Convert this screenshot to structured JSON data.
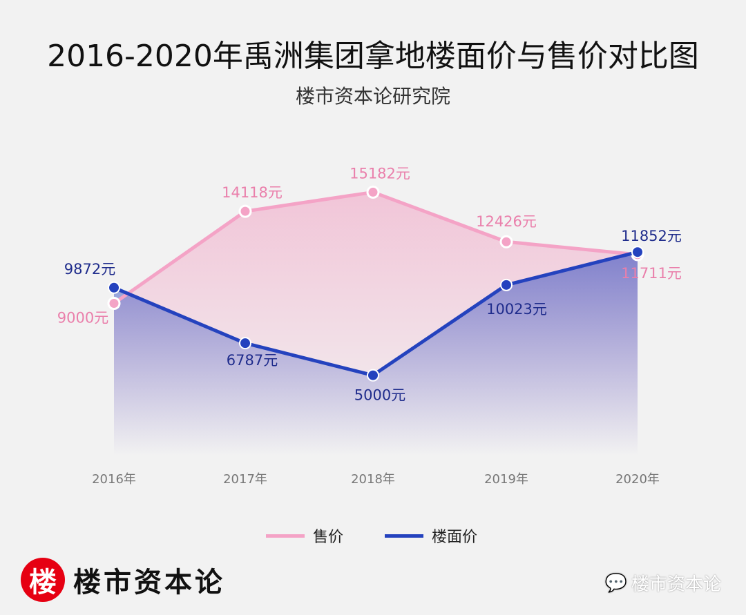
{
  "chart_data": {
    "type": "line",
    "title": "2016-2020年禹洲集团拿地楼面价与售价对比图",
    "subtitle": "楼市资本论研究院",
    "categories": [
      "2016年",
      "2017年",
      "2018年",
      "2019年",
      "2020年"
    ],
    "series": [
      {
        "name": "售价",
        "color": "#f4a3c6",
        "values": [
          9000,
          14118,
          15182,
          12426,
          11711
        ],
        "labels": [
          "9000元",
          "14118元",
          "15182元",
          "12426元",
          "11711元"
        ]
      },
      {
        "name": "楼面价",
        "color": "#2442be",
        "values": [
          9872,
          6787,
          5000,
          10023,
          11852
        ],
        "labels": [
          "9872元",
          "6787元",
          "5000元",
          "10023元",
          "11852元"
        ]
      }
    ],
    "ylim": [
      0,
      18000
    ],
    "grid": false,
    "legend": "bottom-center"
  },
  "brand": {
    "logo_char": "楼",
    "name": "楼市资本论",
    "watermark": "楼市资本论"
  }
}
